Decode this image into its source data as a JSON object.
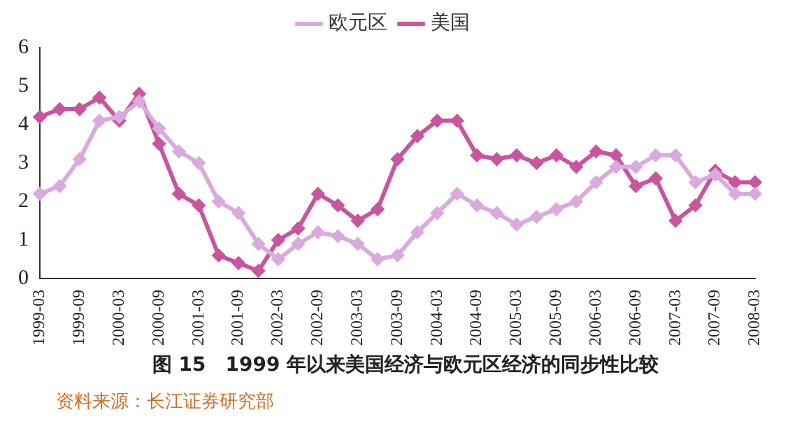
{
  "chart_data": {
    "type": "line",
    "title": "图 15　1999 年以来美国经济与欧元区经济的同步性比较",
    "annotations": [
      "资料来源：长江证券研究部"
    ],
    "categories": [
      "1999-03",
      null,
      "1999-09",
      null,
      "2000-03",
      null,
      "2000-09",
      null,
      "2001-03",
      null,
      "2001-09",
      null,
      "2002-03",
      null,
      "2002-09",
      null,
      "2003-03",
      null,
      "2003-09",
      null,
      "2004-03",
      null,
      "2004-09",
      null,
      "2005-03",
      null,
      "2005-09",
      null,
      "2006-03",
      null,
      "2006-09",
      null,
      "2007-03",
      null,
      "2007-09",
      null,
      "2008-03"
    ],
    "series": [
      {
        "name": "欧元区",
        "color": "#d9abdd",
        "values": [
          2.2,
          2.4,
          3.1,
          4.1,
          4.2,
          4.6,
          3.9,
          3.3,
          3.0,
          2.0,
          1.7,
          0.9,
          0.5,
          0.9,
          1.2,
          1.1,
          0.9,
          0.5,
          0.6,
          1.2,
          1.7,
          2.2,
          1.9,
          1.7,
          1.4,
          1.6,
          1.8,
          2.0,
          2.5,
          2.9,
          2.9,
          3.2,
          3.2,
          2.5,
          2.7,
          2.2,
          2.2
        ]
      },
      {
        "name": "美国",
        "color": "#c8559e",
        "values": [
          4.2,
          4.4,
          4.4,
          4.7,
          4.1,
          4.8,
          3.5,
          2.2,
          1.9,
          0.6,
          0.4,
          0.2,
          1.0,
          1.3,
          2.2,
          1.9,
          1.5,
          1.8,
          3.1,
          3.7,
          4.1,
          4.1,
          3.2,
          3.1,
          3.2,
          3.0,
          3.2,
          2.9,
          3.3,
          3.2,
          2.4,
          2.6,
          1.5,
          1.9,
          2.8,
          2.5,
          2.5
        ]
      }
    ],
    "ylim": [
      0,
      6
    ],
    "yticks": [
      0,
      1,
      2,
      3,
      4,
      5,
      6
    ],
    "grid": false,
    "legend": "top",
    "marker": "diamond",
    "line_style": "solid"
  }
}
